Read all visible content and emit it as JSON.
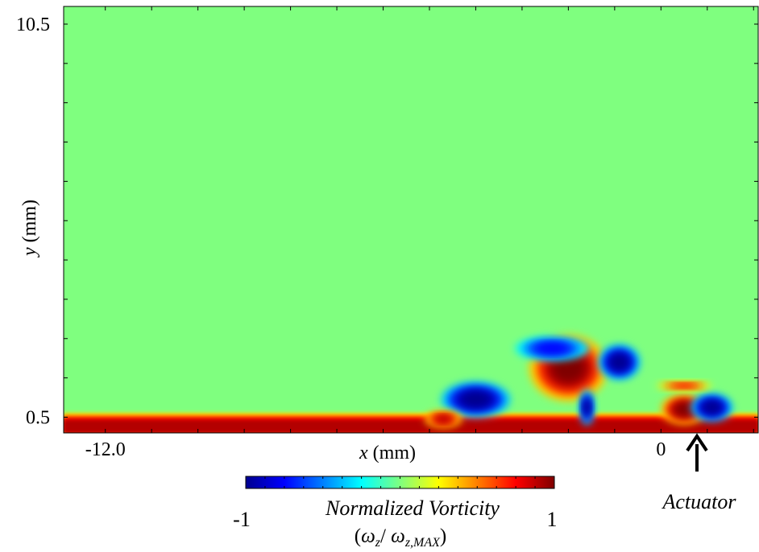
{
  "chart_data": {
    "type": "heatmap",
    "title": "",
    "xlabel_var": "x",
    "xlabel_unit": " (mm)",
    "ylabel_var": "y",
    "ylabel_unit": " (mm)",
    "x_ticks": [
      {
        "value": -12.0,
        "label": "-12.0"
      },
      {
        "value": 0,
        "label": "0"
      }
    ],
    "y_ticks": [
      {
        "value": 0.5,
        "label": "0.5"
      },
      {
        "value": 10.5,
        "label": "10.5"
      }
    ],
    "xlim": [
      -12.9,
      2.1
    ],
    "ylim": [
      0.1,
      10.95
    ],
    "background_value": 0,
    "colormap": "jet",
    "colorbar": {
      "range": [
        -1,
        1
      ],
      "min_label": "-1",
      "max_label": "1",
      "title": "Normalized Vorticity",
      "formula_open": "(",
      "formula_w1": "ω",
      "formula_sub1": "z",
      "formula_sep": "/ ",
      "formula_w2": "ω",
      "formula_sub2": "z,MAX",
      "formula_close": ")"
    },
    "annotations": [
      {
        "label": "Actuator",
        "x": 0.75,
        "arrow": "up"
      }
    ],
    "boundary_layer": {
      "y_top": 0.55,
      "value": 0.9
    },
    "vortices": [
      {
        "x": -4.0,
        "y": 0.95,
        "rx": 0.75,
        "ry": 0.45,
        "value": -1.0
      },
      {
        "x": -4.7,
        "y": 0.45,
        "rx": 0.4,
        "ry": 0.2,
        "value": 0.9
      },
      {
        "x": -2.0,
        "y": 1.75,
        "rx": 0.85,
        "ry": 0.85,
        "value": 1.0
      },
      {
        "x": -2.35,
        "y": 2.25,
        "rx": 0.8,
        "ry": 0.3,
        "value": -0.75
      },
      {
        "x": -0.9,
        "y": 1.9,
        "rx": 0.45,
        "ry": 0.45,
        "value": -1.0
      },
      {
        "x": -1.6,
        "y": 0.75,
        "rx": 0.15,
        "ry": 0.45,
        "value": -1.0
      },
      {
        "x": 0.5,
        "y": 0.7,
        "rx": 0.5,
        "ry": 0.38,
        "value": 1.0
      },
      {
        "x": 1.1,
        "y": 0.75,
        "rx": 0.45,
        "ry": 0.35,
        "value": -1.0
      },
      {
        "x": 0.5,
        "y": 1.3,
        "rx": 0.6,
        "ry": 0.1,
        "value": 0.75
      }
    ]
  }
}
